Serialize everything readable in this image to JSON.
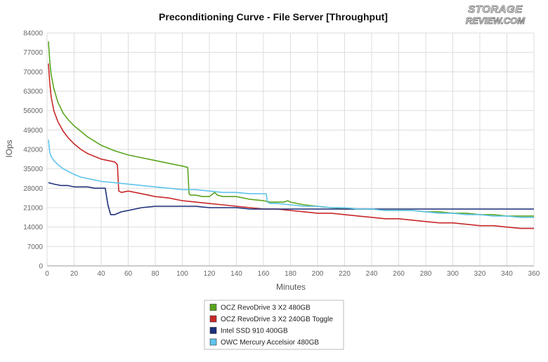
{
  "logo": {
    "line1": "STORAGE",
    "line2": "REVIEW.COM"
  },
  "chart_data": {
    "type": "line",
    "title": "Preconditioning Curve - File Server [Throughput]",
    "xlabel": "Minutes",
    "ylabel": "IOps",
    "xlim": [
      0,
      360
    ],
    "ylim": [
      0,
      84000
    ],
    "xticks": [
      0,
      20,
      40,
      60,
      80,
      100,
      120,
      140,
      160,
      180,
      200,
      220,
      240,
      260,
      280,
      300,
      320,
      340,
      360
    ],
    "yticks": [
      0,
      7000,
      14000,
      21000,
      28000,
      35000,
      42000,
      49000,
      56000,
      63000,
      70000,
      77000,
      84000
    ],
    "grid": true,
    "legend_position": "bottom-center",
    "series": [
      {
        "name": "OCZ RevoDrive 3 X2 480GB",
        "color": "#5aa51f",
        "x": [
          1,
          2,
          3,
          5,
          8,
          12,
          16,
          20,
          25,
          30,
          40,
          50,
          60,
          70,
          80,
          90,
          100,
          104,
          105,
          106,
          110,
          115,
          120,
          124,
          126,
          130,
          140,
          150,
          160,
          165,
          170,
          175,
          178,
          180,
          185,
          190,
          200,
          210,
          220,
          230,
          240,
          250,
          260,
          270,
          280,
          290,
          300,
          310,
          320,
          330,
          340,
          350,
          360
        ],
        "values": [
          81000,
          74000,
          69000,
          64000,
          59000,
          55000,
          52500,
          50500,
          48500,
          46500,
          43500,
          41500,
          40000,
          39000,
          38000,
          37000,
          36000,
          35500,
          26000,
          25500,
          25500,
          25000,
          25000,
          26500,
          25500,
          25000,
          25000,
          24000,
          23500,
          23000,
          23000,
          23000,
          23500,
          23000,
          22500,
          22000,
          21500,
          21000,
          20500,
          20500,
          20500,
          20000,
          20000,
          20000,
          19500,
          19500,
          19000,
          19000,
          18500,
          18500,
          18000,
          18000,
          18000
        ]
      },
      {
        "name": "OCZ RevoDrive 3 X2 240GB Toggle",
        "color": "#c8282a",
        "x": [
          1,
          2,
          3,
          5,
          8,
          12,
          16,
          20,
          25,
          30,
          35,
          40,
          45,
          50,
          52,
          53,
          55,
          60,
          70,
          80,
          90,
          100,
          110,
          120,
          130,
          140,
          150,
          160,
          170,
          180,
          190,
          200,
          210,
          220,
          230,
          240,
          250,
          260,
          270,
          280,
          290,
          300,
          310,
          320,
          330,
          340,
          350,
          360
        ],
        "values": [
          73000,
          66000,
          61000,
          56000,
          52000,
          48500,
          46000,
          44000,
          42000,
          40500,
          39500,
          38500,
          38000,
          37500,
          36500,
          27000,
          26500,
          27000,
          26000,
          25000,
          24500,
          23500,
          23000,
          22500,
          22000,
          21500,
          21000,
          20500,
          20500,
          20000,
          19500,
          19000,
          19000,
          18500,
          18000,
          17500,
          17000,
          17000,
          16500,
          16000,
          15500,
          15500,
          15000,
          14500,
          14500,
          14000,
          13500,
          13500
        ]
      },
      {
        "name": "Intel SSD 910 400GB",
        "color": "#1c2f7a",
        "x": [
          1,
          5,
          10,
          15,
          20,
          25,
          30,
          35,
          40,
          43,
          45,
          47,
          50,
          55,
          60,
          70,
          80,
          90,
          100,
          110,
          120,
          130,
          140,
          150,
          160,
          170,
          180,
          190,
          200,
          210,
          220,
          230,
          240,
          250,
          260,
          270,
          280,
          290,
          300,
          310,
          320,
          330,
          340,
          350,
          360
        ],
        "values": [
          30000,
          29500,
          29000,
          29000,
          28500,
          28500,
          28500,
          28000,
          28000,
          28000,
          22000,
          18500,
          18500,
          19500,
          20000,
          21000,
          21500,
          21500,
          21500,
          21500,
          21000,
          21000,
          21000,
          20500,
          20500,
          20500,
          20500,
          20500,
          20500,
          20500,
          20500,
          20500,
          20500,
          20500,
          20500,
          20500,
          20500,
          20500,
          20500,
          20500,
          20500,
          20500,
          20500,
          20500,
          20500
        ]
      },
      {
        "name": "OWC Mercury Accelsior 480GB",
        "color": "#5ec4ec",
        "x": [
          1,
          2,
          3,
          5,
          8,
          12,
          16,
          20,
          25,
          30,
          40,
          50,
          60,
          70,
          80,
          90,
          100,
          110,
          120,
          130,
          140,
          150,
          160,
          162,
          163,
          165,
          170,
          180,
          190,
          200,
          210,
          220,
          230,
          240,
          250,
          260,
          270,
          280,
          290,
          300,
          310,
          320,
          330,
          340,
          350,
          360
        ],
        "values": [
          45500,
          41000,
          39500,
          38000,
          36500,
          35000,
          34000,
          33000,
          32000,
          31500,
          30500,
          30000,
          29500,
          29000,
          28500,
          28000,
          27500,
          27500,
          27000,
          26500,
          26500,
          26000,
          26000,
          26000,
          23000,
          22500,
          22500,
          22000,
          21500,
          21500,
          21000,
          21000,
          20500,
          20500,
          20000,
          20000,
          20000,
          19500,
          19000,
          19000,
          18500,
          18500,
          18000,
          18000,
          17500,
          17500
        ]
      }
    ]
  }
}
